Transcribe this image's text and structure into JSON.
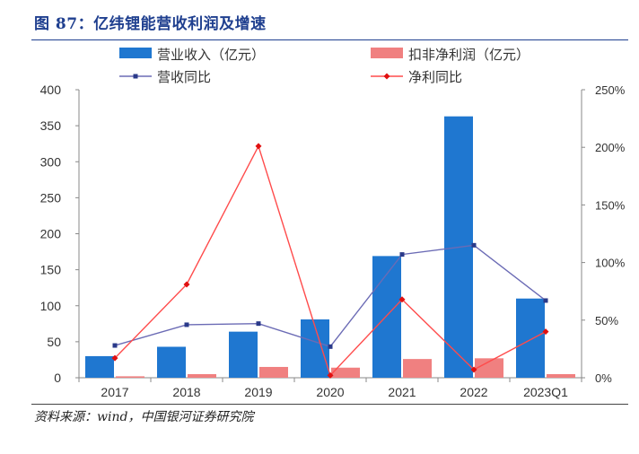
{
  "figure": {
    "title": "图 87：亿纬锂能营收利润及增速",
    "source": "资料来源：wind，中国银河证券研究院"
  },
  "chart_data": {
    "type": "bar",
    "categories": [
      "2017",
      "2018",
      "2019",
      "2020",
      "2021",
      "2022",
      "2023Q1"
    ],
    "series": [
      {
        "name": "营业收入（亿元）",
        "kind": "bar",
        "axis": "left",
        "color": "#1f77d0",
        "values": [
          30,
          43,
          64,
          81,
          169,
          363,
          110
        ]
      },
      {
        "name": "扣非净利润（亿元）",
        "kind": "bar",
        "axis": "left",
        "color": "#f08080",
        "values": [
          2,
          5,
          15,
          14,
          26,
          27,
          5
        ]
      },
      {
        "name": "营收同比",
        "kind": "line",
        "axis": "right",
        "color": "#6b6bb5",
        "marker_color": "#2a3a8a",
        "values": [
          28,
          46,
          47,
          27,
          107,
          115,
          67
        ]
      },
      {
        "name": "净利同比",
        "kind": "line",
        "axis": "right",
        "color": "#ff4b4b",
        "marker_color": "#e01010",
        "values": [
          17,
          81,
          201,
          2,
          68,
          7,
          40
        ]
      }
    ],
    "y_left": {
      "ylim": [
        0,
        400
      ],
      "ticks": [
        "0",
        "50",
        "100",
        "150",
        "200",
        "250",
        "300",
        "350",
        "400"
      ]
    },
    "y_right": {
      "ylim": [
        0,
        250
      ],
      "ticks": [
        "0%",
        "50%",
        "100%",
        "150%",
        "200%",
        "250%"
      ]
    },
    "legend_position": "top",
    "grid": false
  }
}
